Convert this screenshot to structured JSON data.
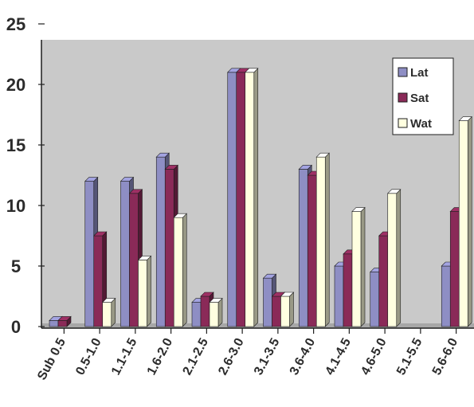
{
  "chart_data": {
    "type": "bar",
    "categories": [
      "Sub 0.5",
      "0.5-1.0",
      "1.1-1.5",
      "1.6-2.0",
      "2.1-2.5",
      "2.6-3.0",
      "3.1-3.5",
      "3.6-4.0",
      "4.1-4.5",
      "4.6-5.0",
      "5.1-5.5",
      "5.6-6.0"
    ],
    "series": [
      {
        "name": "Lat",
        "color": "#8e8ec4",
        "values": [
          0.5,
          12,
          12,
          14,
          2,
          21,
          4,
          13,
          5,
          4.5,
          0,
          5
        ]
      },
      {
        "name": "Sat",
        "color": "#8a2a58",
        "values": [
          0.5,
          7.5,
          11,
          13,
          2.5,
          21,
          2.5,
          12.5,
          6,
          7.5,
          0,
          9.5
        ]
      },
      {
        "name": "Wat",
        "color": "#ffffe0",
        "values": [
          0,
          2,
          5.5,
          9,
          2,
          21,
          2.5,
          14,
          9.5,
          11,
          0,
          17
        ]
      }
    ],
    "ylim": [
      0,
      25
    ],
    "yticks": [
      "0",
      "5",
      "10",
      "15",
      "20",
      "25"
    ],
    "legend_position": "top-right",
    "grid": false
  }
}
